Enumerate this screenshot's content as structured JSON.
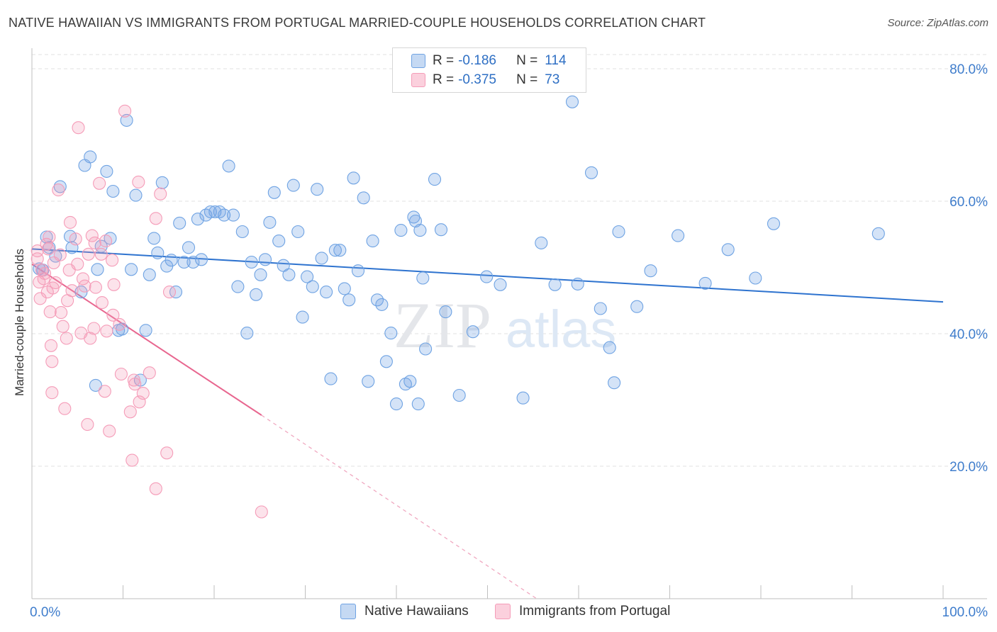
{
  "title": "NATIVE HAWAIIAN VS IMMIGRANTS FROM PORTUGAL MARRIED-COUPLE HOUSEHOLDS CORRELATION CHART",
  "source": "Source: ZipAtlas.com",
  "watermark": {
    "part1": "ZIP",
    "part2": "atlas"
  },
  "legend": {
    "rows": [
      {
        "r_label": "R =",
        "r_value": "-0.186",
        "n_label": "N =",
        "n_value": "114"
      },
      {
        "r_label": "R =",
        "r_value": "-0.375",
        "n_label": "N =",
        "n_value": "73"
      }
    ]
  },
  "bottom_legend": [
    "Native Hawaiians",
    "Immigrants from Portugal"
  ],
  "chart_data": {
    "type": "scatter",
    "title": "NATIVE HAWAIIAN VS IMMIGRANTS FROM PORTUGAL MARRIED-COUPLE HOUSEHOLDS CORRELATION CHART",
    "xlabel": "",
    "ylabel": "Married-couple Households",
    "xlim": [
      0,
      100
    ],
    "ylim": [
      0,
      82
    ],
    "x_tick_labels": [
      "0.0%",
      "100.0%"
    ],
    "y_ticks": [
      20,
      40,
      60,
      80
    ],
    "y_tick_labels": [
      "20.0%",
      "40.0%",
      "60.0%",
      "80.0%"
    ],
    "grid": true,
    "legend_position": "top-center",
    "series": [
      {
        "name": "Native Hawaiians",
        "color": "#6fa3e3",
        "trend": {
          "x": [
            0,
            100
          ],
          "y": [
            52.8,
            44.8
          ],
          "style": "solid",
          "color": "#2e73cf"
        },
        "points": [
          [
            0.8,
            49.8
          ],
          [
            1.2,
            49.6
          ],
          [
            1.6,
            54.6
          ],
          [
            1.9,
            53
          ],
          [
            2.6,
            51.7
          ],
          [
            3.1,
            62.2
          ],
          [
            4.2,
            54.7
          ],
          [
            4.4,
            53.0
          ],
          [
            5.4,
            46.3
          ],
          [
            5.8,
            65.4
          ],
          [
            6.4,
            66.7
          ],
          [
            7.0,
            32.2
          ],
          [
            7.2,
            49.7
          ],
          [
            7.6,
            53.2
          ],
          [
            8.2,
            64.5
          ],
          [
            8.6,
            54.4
          ],
          [
            8.9,
            61.5
          ],
          [
            9.5,
            40.5
          ],
          [
            9.9,
            40.7
          ],
          [
            10.4,
            72.2
          ],
          [
            10.9,
            49.7
          ],
          [
            11.4,
            60.9
          ],
          [
            11.9,
            33.0
          ],
          [
            12.5,
            40.5
          ],
          [
            12.9,
            48.9
          ],
          [
            13.4,
            54.4
          ],
          [
            13.8,
            52.2
          ],
          [
            14.3,
            62.8
          ],
          [
            14.8,
            50.2
          ],
          [
            15.3,
            51.1
          ],
          [
            15.8,
            46.3
          ],
          [
            16.2,
            56.7
          ],
          [
            16.7,
            50.8
          ],
          [
            17.2,
            53.0
          ],
          [
            17.7,
            50.8
          ],
          [
            18.2,
            57.3
          ],
          [
            18.6,
            51.2
          ],
          [
            19.1,
            57.9
          ],
          [
            19.6,
            58.4
          ],
          [
            20.1,
            58.4
          ],
          [
            20.6,
            58.4
          ],
          [
            21.1,
            57.9
          ],
          [
            21.6,
            65.3
          ],
          [
            22.1,
            57.9
          ],
          [
            22.6,
            47.1
          ],
          [
            23.1,
            55.4
          ],
          [
            23.6,
            40.1
          ],
          [
            24.1,
            50.8
          ],
          [
            24.6,
            45.9
          ],
          [
            25.1,
            48.9
          ],
          [
            25.6,
            51.2
          ],
          [
            26.1,
            56.8
          ],
          [
            26.6,
            61.3
          ],
          [
            27.1,
            54.0
          ],
          [
            27.6,
            50.3
          ],
          [
            28.2,
            48.9
          ],
          [
            28.7,
            62.4
          ],
          [
            29.2,
            55.4
          ],
          [
            29.7,
            42.5
          ],
          [
            30.2,
            48.6
          ],
          [
            30.8,
            47.1
          ],
          [
            31.3,
            61.8
          ],
          [
            31.8,
            51.4
          ],
          [
            32.3,
            46.3
          ],
          [
            32.8,
            33.2
          ],
          [
            33.3,
            52.6
          ],
          [
            33.8,
            52.6
          ],
          [
            34.3,
            46.8
          ],
          [
            34.8,
            45.1
          ],
          [
            35.3,
            63.5
          ],
          [
            35.8,
            49.5
          ],
          [
            36.4,
            60.5
          ],
          [
            36.9,
            32.8
          ],
          [
            37.4,
            54.0
          ],
          [
            37.9,
            45.1
          ],
          [
            38.4,
            44.4
          ],
          [
            38.9,
            35.8
          ],
          [
            39.4,
            40.1
          ],
          [
            40.0,
            29.4
          ],
          [
            40.5,
            55.6
          ],
          [
            41.0,
            32.4
          ],
          [
            41.5,
            32.8
          ],
          [
            41.9,
            57.6
          ],
          [
            42.1,
            57.0
          ],
          [
            42.4,
            29.4
          ],
          [
            42.6,
            55.6
          ],
          [
            42.9,
            48.4
          ],
          [
            43.2,
            37.7
          ],
          [
            44.2,
            63.3
          ],
          [
            44.9,
            55.7
          ],
          [
            45.4,
            43.3
          ],
          [
            46.9,
            30.7
          ],
          [
            48.4,
            40.3
          ],
          [
            49.9,
            48.6
          ],
          [
            51.4,
            47.4
          ],
          [
            53.9,
            30.3
          ],
          [
            55.9,
            53.7
          ],
          [
            57.4,
            47.4
          ],
          [
            59.3,
            75.0
          ],
          [
            59.9,
            47.5
          ],
          [
            61.4,
            64.3
          ],
          [
            62.4,
            43.8
          ],
          [
            63.4,
            37.9
          ],
          [
            63.9,
            32.6
          ],
          [
            64.4,
            55.4
          ],
          [
            66.4,
            44.1
          ],
          [
            67.9,
            49.5
          ],
          [
            70.9,
            54.8
          ],
          [
            73.9,
            47.6
          ],
          [
            76.4,
            52.7
          ],
          [
            79.4,
            48.4
          ],
          [
            81.4,
            56.6
          ],
          [
            92.9,
            55.1
          ]
        ]
      },
      {
        "name": "Immigrants from Portugal",
        "color": "#f59cb8",
        "trend": {
          "x": [
            0,
            25.2,
            55.4
          ],
          "y": [
            50.5,
            27.7,
            0
          ],
          "style": "solid-then-dashed",
          "solid_until": 25.2,
          "color": "#e8668f"
        },
        "points": [
          [
            0.6,
            52.5
          ],
          [
            0.6,
            51.3
          ],
          [
            0.8,
            47.8
          ],
          [
            0.9,
            45.3
          ],
          [
            1.1,
            49.6
          ],
          [
            1.3,
            48.3
          ],
          [
            1.4,
            49.1
          ],
          [
            1.6,
            53.5
          ],
          [
            1.7,
            46.3
          ],
          [
            1.8,
            52.8
          ],
          [
            1.9,
            54.6
          ],
          [
            2.0,
            43.3
          ],
          [
            2.1,
            38.2
          ],
          [
            2.2,
            35.8
          ],
          [
            2.2,
            31.1
          ],
          [
            2.3,
            46.9
          ],
          [
            2.4,
            50.7
          ],
          [
            2.6,
            47.7
          ],
          [
            2.9,
            61.7
          ],
          [
            3.1,
            51.9
          ],
          [
            3.2,
            43.2
          ],
          [
            3.4,
            41.1
          ],
          [
            3.6,
            28.7
          ],
          [
            3.8,
            39.3
          ],
          [
            3.9,
            45.0
          ],
          [
            4.1,
            49.6
          ],
          [
            4.2,
            56.8
          ],
          [
            4.4,
            46.5
          ],
          [
            4.8,
            54.3
          ],
          [
            5.0,
            50.5
          ],
          [
            5.1,
            71.1
          ],
          [
            5.4,
            40.1
          ],
          [
            5.6,
            48.3
          ],
          [
            5.8,
            47.2
          ],
          [
            6.1,
            26.3
          ],
          [
            6.2,
            52.0
          ],
          [
            6.4,
            39.3
          ],
          [
            6.6,
            54.8
          ],
          [
            6.8,
            40.8
          ],
          [
            6.9,
            53.7
          ],
          [
            7.0,
            47.0
          ],
          [
            7.4,
            62.7
          ],
          [
            7.6,
            52.0
          ],
          [
            7.7,
            44.7
          ],
          [
            8.0,
            31.3
          ],
          [
            8.1,
            54.0
          ],
          [
            8.2,
            40.4
          ],
          [
            8.5,
            25.3
          ],
          [
            8.8,
            51.1
          ],
          [
            8.9,
            42.8
          ],
          [
            9.0,
            47.4
          ],
          [
            9.6,
            41.4
          ],
          [
            9.8,
            33.9
          ],
          [
            10.2,
            73.6
          ],
          [
            10.8,
            28.2
          ],
          [
            11.0,
            20.9
          ],
          [
            11.2,
            33.0
          ],
          [
            11.3,
            32.4
          ],
          [
            11.7,
            62.9
          ],
          [
            11.8,
            29.7
          ],
          [
            12.2,
            31.0
          ],
          [
            12.9,
            34.1
          ],
          [
            13.6,
            57.4
          ],
          [
            13.6,
            16.6
          ],
          [
            14.1,
            61.1
          ],
          [
            14.8,
            22.0
          ],
          [
            15.1,
            46.3
          ],
          [
            25.2,
            13.1
          ]
        ]
      }
    ]
  }
}
